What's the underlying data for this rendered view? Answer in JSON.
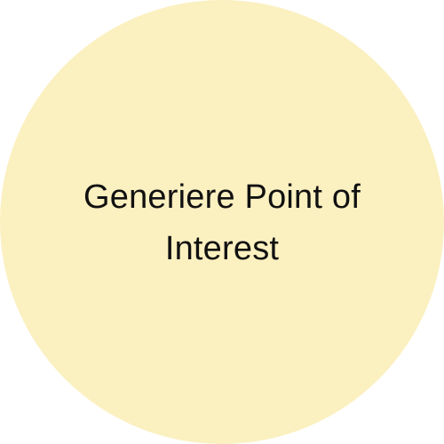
{
  "node": {
    "label": "Generiere Point of Interest",
    "fill_color": "#FBF0C0",
    "text_color": "#111111"
  }
}
